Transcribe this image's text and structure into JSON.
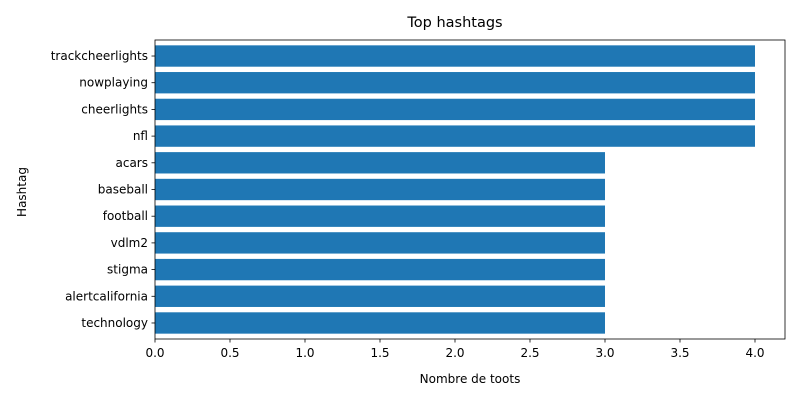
{
  "chart_data": {
    "type": "bar",
    "orientation": "horizontal",
    "title": "Top hashtags",
    "xlabel": "Nombre de toots",
    "ylabel": "Hashtag",
    "categories": [
      "trackcheerlights",
      "nowplaying",
      "cheerlights",
      "nfl",
      "acars",
      "baseball",
      "football",
      "vdlm2",
      "stigma",
      "alertcalifornia",
      "technology"
    ],
    "values": [
      4,
      4,
      4,
      4,
      3,
      3,
      3,
      3,
      3,
      3,
      3
    ],
    "xlim": [
      0,
      4.2
    ],
    "xticks": [
      0.0,
      0.5,
      1.0,
      1.5,
      2.0,
      2.5,
      3.0,
      3.5,
      4.0
    ],
    "xtick_labels": [
      "0.0",
      "0.5",
      "1.0",
      "1.5",
      "2.0",
      "2.5",
      "3.0",
      "3.5",
      "4.0"
    ],
    "bar_color": "#1f77b4",
    "grid": false,
    "legend": "none"
  }
}
